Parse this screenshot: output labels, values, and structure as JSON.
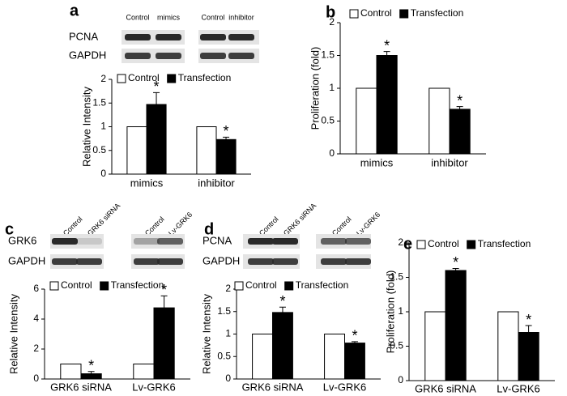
{
  "chart_data": [
    {
      "type": "bar",
      "panel": "a",
      "ylabel": "Relative Intensity",
      "categories": [
        "mimics",
        "inhibitor"
      ],
      "series": [
        {
          "name": "Control",
          "color": "#ffffff",
          "values": [
            1,
            1
          ]
        },
        {
          "name": "Transfection",
          "color": "#000000",
          "values": [
            1.47,
            0.73
          ],
          "errors": [
            0.25,
            0.05
          ],
          "significance": [
            "*",
            "*"
          ]
        }
      ],
      "ylim": [
        0,
        2
      ],
      "yticks": [
        0,
        0.5,
        1,
        1.5,
        2
      ]
    },
    {
      "type": "bar",
      "panel": "b",
      "ylabel": "Proliferation (fold)",
      "categories": [
        "mimics",
        "inhibitor"
      ],
      "series": [
        {
          "name": "Control",
          "color": "#ffffff",
          "values": [
            1,
            1
          ]
        },
        {
          "name": "Transfection",
          "color": "#000000",
          "values": [
            1.5,
            0.68
          ],
          "errors": [
            0.06,
            0.04
          ],
          "significance": [
            "*",
            "*"
          ]
        }
      ],
      "ylim": [
        0,
        2
      ],
      "yticks": [
        0,
        0.5,
        1,
        1.5,
        2
      ]
    },
    {
      "type": "bar",
      "panel": "c",
      "ylabel": "Relative Intensity",
      "categories": [
        "GRK6 siRNA",
        "Lv-GRK6"
      ],
      "series": [
        {
          "name": "Control",
          "color": "#ffffff",
          "values": [
            1,
            1
          ]
        },
        {
          "name": "Transfection",
          "color": "#000000",
          "values": [
            0.35,
            4.75
          ],
          "errors": [
            0.15,
            0.8
          ],
          "significance": [
            "*",
            "*"
          ]
        }
      ],
      "ylim": [
        0,
        6
      ],
      "yticks": [
        0,
        2,
        4,
        6
      ]
    },
    {
      "type": "bar",
      "panel": "d",
      "ylabel": "Relative Intensity",
      "categories": [
        "GRK6 siRNA",
        "Lv-GRK6"
      ],
      "series": [
        {
          "name": "Control",
          "color": "#ffffff",
          "values": [
            1,
            1
          ]
        },
        {
          "name": "Transfection",
          "color": "#000000",
          "values": [
            1.48,
            0.8
          ],
          "errors": [
            0.12,
            0.03
          ],
          "significance": [
            "*",
            "*"
          ]
        }
      ],
      "ylim": [
        0,
        2
      ],
      "yticks": [
        0,
        0.5,
        1,
        1.5,
        2
      ]
    },
    {
      "type": "bar",
      "panel": "e",
      "ylabel": "Proliferation (fold)",
      "categories": [
        "GRK6 siRNA",
        "Lv-GRK6"
      ],
      "series": [
        {
          "name": "Control",
          "color": "#ffffff",
          "values": [
            1,
            1
          ]
        },
        {
          "name": "Transfection",
          "color": "#000000",
          "values": [
            1.6,
            0.7
          ],
          "errors": [
            0.03,
            0.1
          ],
          "significance": [
            "*",
            "*"
          ]
        }
      ],
      "ylim": [
        0,
        2
      ],
      "yticks": [
        0,
        0.5,
        1,
        1.5,
        2
      ]
    }
  ],
  "blots": [
    {
      "lanes": [
        "Control",
        "mimics",
        "Control",
        "inhibitor"
      ],
      "rows": [
        "PCNA",
        "GAPDH"
      ]
    },
    {
      "lanes": [
        "Control",
        "GRK6 siRNA",
        "Control",
        "Lv-GRK6"
      ],
      "rows": [
        "GRK6",
        "GAPDH"
      ]
    },
    {
      "lanes": [
        "Control",
        "GRK6 siRNA",
        "Control",
        "Lv-GRK6"
      ],
      "rows": [
        "PCNA",
        "GAPDH"
      ]
    }
  ]
}
